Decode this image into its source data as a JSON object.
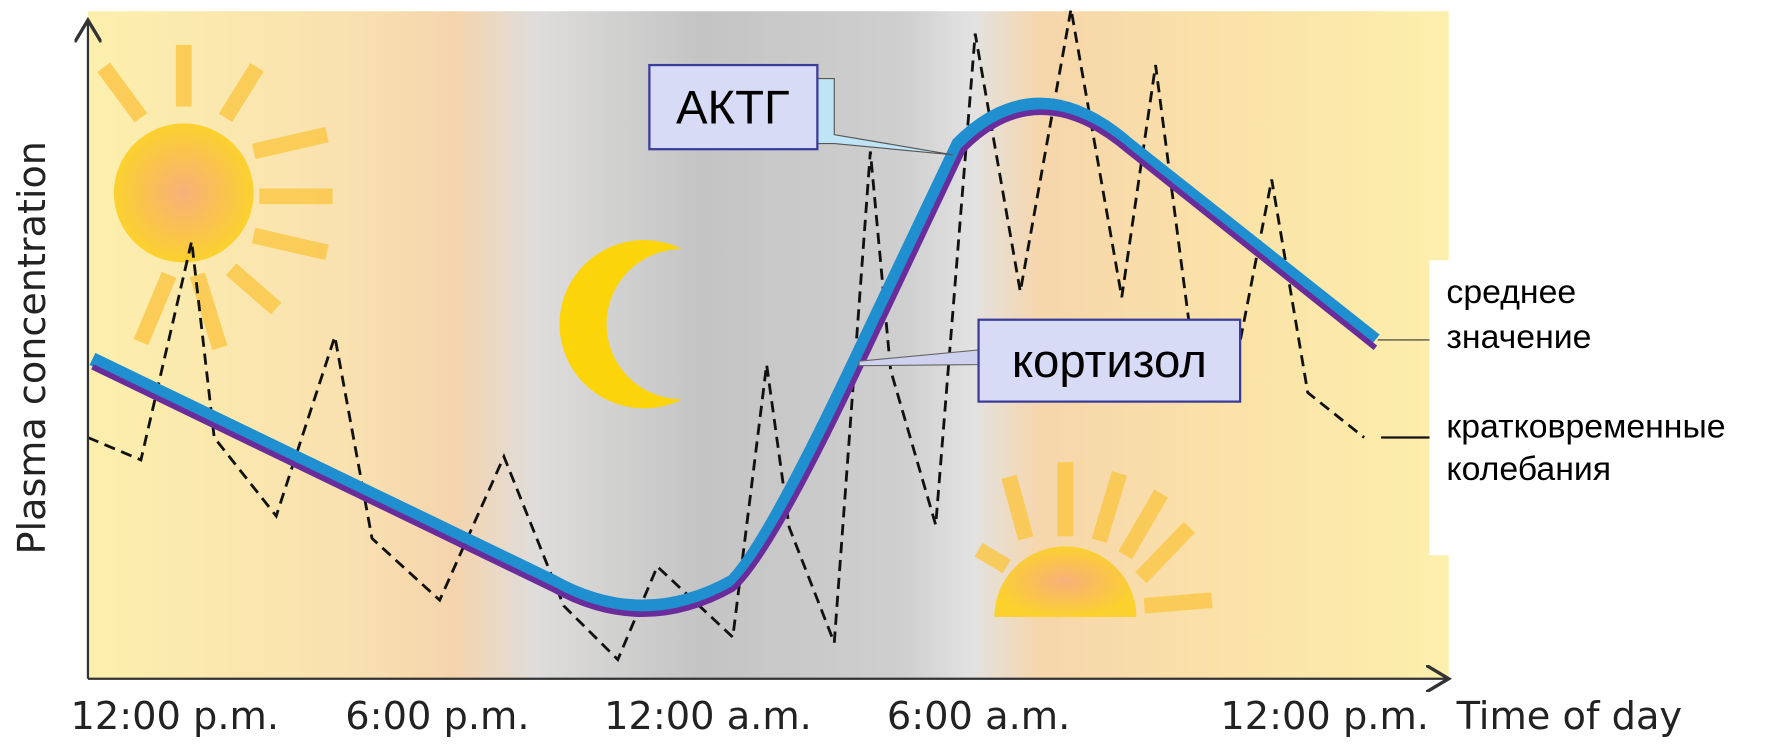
{
  "y_axis_label": "Plasma concentration",
  "x_axis": {
    "ticks": [
      "12:00 p.m.",
      "6:00 p.m.",
      "12:00 a.m.",
      "6:00 a.m.",
      "12:00 p.m."
    ],
    "label": "Time of day"
  },
  "labels": {
    "acth": "АКТГ",
    "cortisol": "кортизол"
  },
  "legend": [
    {
      "lines": [
        "среднее",
        "значение"
      ]
    },
    {
      "lines": [
        "кратковременные",
        "колебания"
      ]
    }
  ]
}
